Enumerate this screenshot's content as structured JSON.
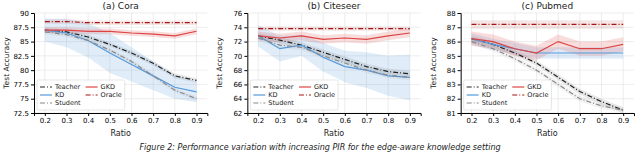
{
  "chart_data": [
    {
      "type": "line",
      "title": "(a) Cora",
      "x_label": "Ratio",
      "y_label": "Test Accuracy",
      "x": [
        0.2,
        0.3,
        0.4,
        0.5,
        0.6,
        0.7,
        0.8,
        0.9
      ],
      "xlim": [
        0.15,
        0.95
      ],
      "xticks": [
        0.2,
        0.3,
        0.4,
        0.5,
        0.6,
        0.7,
        0.8,
        0.9
      ],
      "ylim": [
        72.5,
        90
      ],
      "yticks": [
        72.5,
        75,
        77.5,
        80,
        82.5,
        85,
        87.5,
        90
      ],
      "grid": true,
      "legend": "lower left",
      "series": [
        {
          "name": "Teacher",
          "color": "#222222",
          "line_style": "dashdot",
          "values": [
            87.0,
            86.7,
            85.8,
            84.5,
            83.0,
            81.2,
            79.0,
            78.2
          ],
          "std": [
            0.4,
            0.4,
            0.4,
            0.4,
            0.4,
            0.4,
            0.4,
            0.4
          ]
        },
        {
          "name": "KD",
          "color": "#5599dd",
          "line_style": "solid",
          "values": [
            87.0,
            86.5,
            85.2,
            83.0,
            81.0,
            79.0,
            77.0,
            76.2
          ],
          "std": [
            2.0,
            2.5,
            3.0,
            3.5,
            3.0,
            2.5,
            2.0,
            1.8
          ]
        },
        {
          "name": "Student",
          "color": "#888888",
          "line_style": "dashdot",
          "values": [
            86.7,
            86.2,
            85.2,
            83.5,
            81.5,
            79.0,
            76.5,
            75.0
          ],
          "std": [
            0.4,
            0.4,
            0.4,
            0.4,
            0.4,
            0.4,
            0.4,
            0.4
          ]
        },
        {
          "name": "GKD",
          "color": "#dd4444",
          "line_style": "solid",
          "values": [
            87.0,
            87.0,
            86.8,
            86.8,
            86.5,
            86.3,
            86.0,
            86.8
          ],
          "std": [
            0.5,
            0.5,
            0.5,
            0.5,
            0.5,
            0.5,
            0.5,
            0.5
          ]
        },
        {
          "name": "Oracle",
          "color": "#aa1111",
          "line_style": "dashdot",
          "values": [
            88.5,
            88.5,
            88.3,
            88.3,
            88.3,
            88.3,
            88.3,
            88.3
          ],
          "std": [
            0.4,
            0.4,
            0.4,
            0.4,
            0.4,
            0.4,
            0.4,
            0.4
          ]
        }
      ]
    },
    {
      "type": "line",
      "title": "(b) Citeseer",
      "x_label": "Ratio",
      "y_label": "Test Accuracy",
      "x": [
        0.2,
        0.3,
        0.4,
        0.5,
        0.6,
        0.7,
        0.8,
        0.9
      ],
      "xlim": [
        0.15,
        0.95
      ],
      "xticks": [
        0.2,
        0.3,
        0.4,
        0.5,
        0.6,
        0.7,
        0.8,
        0.9
      ],
      "ylim": [
        62,
        76
      ],
      "yticks": [
        62,
        64,
        66,
        68,
        70,
        72,
        74,
        76
      ],
      "grid": true,
      "legend": "lower left",
      "series": [
        {
          "name": "Teacher",
          "color": "#222222",
          "line_style": "dashdot",
          "values": [
            72.8,
            72.2,
            71.5,
            70.5,
            69.5,
            68.5,
            67.8,
            67.5
          ],
          "std": [
            0.4,
            0.4,
            0.4,
            0.4,
            0.4,
            0.4,
            0.4,
            0.4
          ]
        },
        {
          "name": "KD",
          "color": "#5599dd",
          "line_style": "solid",
          "values": [
            72.8,
            71.0,
            71.5,
            69.8,
            68.5,
            68.0,
            67.2,
            67.0
          ],
          "std": [
            1.5,
            1.8,
            1.5,
            2.0,
            2.2,
            2.5,
            2.8,
            3.2
          ]
        },
        {
          "name": "Student",
          "color": "#888888",
          "line_style": "dashdot",
          "values": [
            72.5,
            71.5,
            71.2,
            70.0,
            69.0,
            68.0,
            67.3,
            67.0
          ],
          "std": [
            0.4,
            0.4,
            0.4,
            0.4,
            0.4,
            0.4,
            0.4,
            0.4
          ]
        },
        {
          "name": "GKD",
          "color": "#dd4444",
          "line_style": "solid",
          "values": [
            72.8,
            72.5,
            72.8,
            72.3,
            72.5,
            72.3,
            72.8,
            73.2
          ],
          "std": [
            0.6,
            0.6,
            0.6,
            0.6,
            0.6,
            0.6,
            0.6,
            0.6
          ]
        },
        {
          "name": "Oracle",
          "color": "#aa1111",
          "line_style": "dashdot",
          "values": [
            73.8,
            73.8,
            73.8,
            73.8,
            73.8,
            73.8,
            73.8,
            73.8
          ],
          "std": [
            0.3,
            0.3,
            0.3,
            0.3,
            0.3,
            0.3,
            0.3,
            0.3
          ]
        }
      ]
    },
    {
      "type": "line",
      "title": "(c) Pubmed",
      "x_label": "Ratio",
      "y_label": "Test Accuracy",
      "x": [
        0.2,
        0.3,
        0.4,
        0.5,
        0.6,
        0.7,
        0.8,
        0.9
      ],
      "xlim": [
        0.15,
        0.95
      ],
      "xticks": [
        0.2,
        0.3,
        0.4,
        0.5,
        0.6,
        0.7,
        0.8,
        0.9
      ],
      "ylim": [
        81,
        88
      ],
      "yticks": [
        81,
        82,
        83,
        84,
        85,
        86,
        87,
        88
      ],
      "grid": true,
      "legend": "lower left",
      "series": [
        {
          "name": "Teacher",
          "color": "#222222",
          "line_style": "dashdot",
          "values": [
            86.2,
            85.8,
            85.2,
            84.5,
            83.5,
            82.5,
            81.8,
            81.2
          ],
          "std": [
            0.2,
            0.2,
            0.2,
            0.2,
            0.2,
            0.2,
            0.2,
            0.2
          ]
        },
        {
          "name": "KD",
          "color": "#5599dd",
          "line_style": "solid",
          "values": [
            86.2,
            85.8,
            85.5,
            85.2,
            85.2,
            85.2,
            85.2,
            85.2
          ],
          "std": [
            0.4,
            0.4,
            0.4,
            0.4,
            0.4,
            0.4,
            0.4,
            0.4
          ]
        },
        {
          "name": "Student",
          "color": "#888888",
          "line_style": "dashdot",
          "values": [
            86.0,
            85.5,
            84.8,
            84.0,
            83.0,
            82.0,
            81.5,
            81.2
          ],
          "std": [
            0.2,
            0.2,
            0.2,
            0.2,
            0.2,
            0.2,
            0.2,
            0.2
          ]
        },
        {
          "name": "GKD",
          "color": "#dd4444",
          "line_style": "solid",
          "values": [
            86.2,
            86.0,
            85.5,
            85.2,
            86.0,
            85.5,
            85.5,
            85.8
          ],
          "std": [
            0.5,
            0.5,
            0.5,
            0.5,
            0.5,
            0.5,
            0.5,
            0.5
          ]
        },
        {
          "name": "Oracle",
          "color": "#aa1111",
          "line_style": "dashdot",
          "values": [
            87.2,
            87.2,
            87.2,
            87.2,
            87.2,
            87.2,
            87.2,
            87.2
          ],
          "std": [
            0.3,
            0.3,
            0.3,
            0.3,
            0.3,
            0.3,
            0.3,
            0.3
          ]
        }
      ]
    }
  ],
  "caption": "Figure 2: Performance variation with increasing PIR for the edge-aware knowledge setting"
}
